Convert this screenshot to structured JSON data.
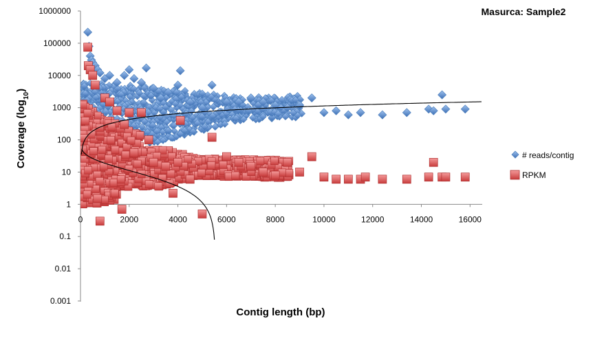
{
  "chart_data": {
    "type": "scatter",
    "title": "Masurca: Sample2",
    "xlabel": "Contig length (bp)",
    "ylabel": {
      "main": "Coverage (log",
      "sub": "10",
      "close": ")"
    },
    "xlim": [
      0,
      16500
    ],
    "ylim": [
      0.001,
      1000000
    ],
    "y_scale": "log",
    "x_ticks": [
      "0",
      "2000",
      "4000",
      "6000",
      "8000",
      "10000",
      "12000",
      "14000",
      "16000"
    ],
    "y_ticks": [
      "0.001",
      "0.01",
      "0.1",
      "1",
      "10",
      "100",
      "1000",
      "10000",
      "100000",
      "1000000"
    ],
    "grid": false,
    "legend_position": "right",
    "colors": {
      "reads": "#4f81bd",
      "rpkm": "#e05555",
      "trend": "#000000"
    },
    "series": [
      {
        "name": "# reads/contig",
        "marker": "diamond",
        "x": [
          300,
          350,
          400,
          450,
          500,
          600,
          700,
          800,
          1000,
          1200,
          1500,
          1800,
          2000,
          2200,
          2500,
          2700,
          3000,
          3300,
          3600,
          4000,
          4100,
          4500,
          5000,
          5400,
          6000,
          6500,
          7000,
          7500,
          8000,
          8500,
          9000,
          9500,
          10000,
          10500,
          11000,
          11500,
          12400,
          13400,
          14300,
          14500,
          14850,
          15000,
          15800
        ],
        "y": [
          220000,
          80000,
          40000,
          30000,
          25000,
          20000,
          15000,
          12000,
          8000,
          10000,
          6000,
          10000,
          15000,
          8000,
          6000,
          17000,
          4000,
          2000,
          3000,
          5000,
          14000,
          1500,
          1000,
          5000,
          1500,
          1500,
          2000,
          1500,
          1200,
          1000,
          1200,
          2000,
          700,
          800,
          600,
          700,
          600,
          700,
          900,
          800,
          2500,
          900,
          900
        ]
      },
      {
        "name": "RPKM",
        "marker": "square",
        "x": [
          300,
          320,
          400,
          500,
          600,
          700,
          800,
          1000,
          1200,
          1500,
          1700,
          1800,
          2000,
          2200,
          2500,
          2800,
          3000,
          3500,
          3800,
          4000,
          4100,
          4500,
          5000,
          5400,
          6000,
          6500,
          7000,
          7500,
          8000,
          8500,
          9000,
          9500,
          10000,
          10500,
          11000,
          11500,
          11700,
          12400,
          13400,
          14300,
          14500,
          14850,
          15000,
          15800
        ],
        "y": [
          75000,
          20000,
          15000,
          10000,
          5000,
          1.5,
          0.3,
          2000,
          1500,
          800,
          0.7,
          300,
          700,
          40,
          700,
          100,
          20,
          15,
          2.2,
          20,
          400,
          6,
          0.5,
          120,
          30,
          20,
          15,
          10,
          8,
          20,
          10,
          30,
          7,
          6,
          6,
          6,
          7,
          6,
          6,
          7,
          20,
          7,
          7,
          7
        ]
      }
    ]
  }
}
